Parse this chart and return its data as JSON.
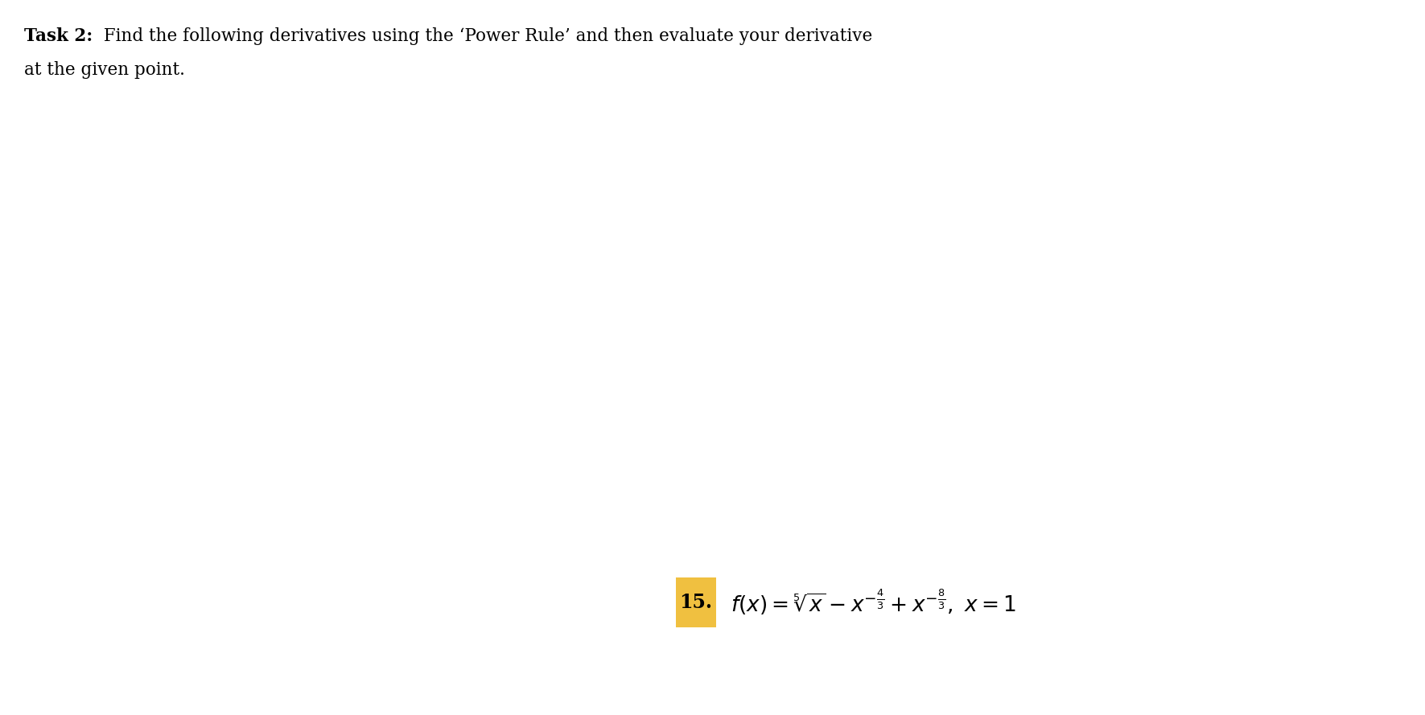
{
  "background_color": "#ffffff",
  "title_bold": "Task 2:",
  "title_rest": " Find the following derivatives using the ‘Power Rule’ and then evaluate your derivative",
  "title_line2": "at the given point.",
  "number_label": "15.",
  "number_highlight_color": "#F0C040",
  "formula": "$f(x) = \\sqrt[5]{x} - x^{-\\frac{4}{3}} + x^{-\\frac{8}{3}},\\ x = 1$",
  "title_fontsize": 15.5,
  "formula_fontsize": 19,
  "number_fontsize": 17,
  "fig_width": 17.71,
  "fig_height": 8.89,
  "dpi": 100
}
